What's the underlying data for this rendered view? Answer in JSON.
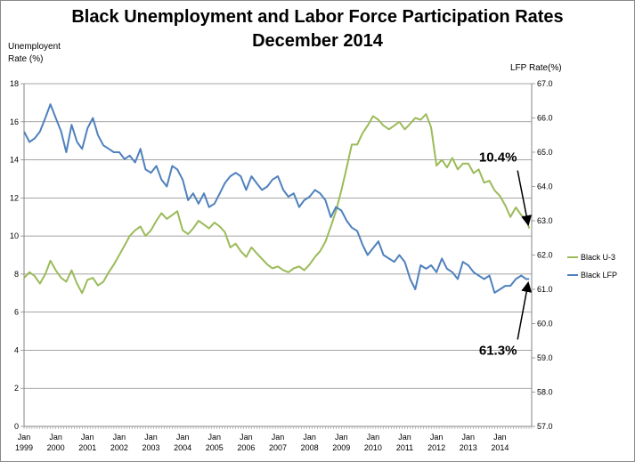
{
  "chart_data": {
    "type": "line",
    "title": "Black Unemployment and Labor Force Participation Rates",
    "subtitle": "December 2014",
    "ylabel_left": "Unemployent Rate (%)",
    "ylabel_right": "LFP Rate(%)",
    "ylim_left": [
      0,
      18
    ],
    "ylim_right": [
      57.0,
      67.0
    ],
    "yticks_left": [
      "0",
      "2",
      "4",
      "6",
      "8",
      "10",
      "12",
      "14",
      "16",
      "18"
    ],
    "yticks_right": [
      "57.0",
      "58.0",
      "59.0",
      "60.0",
      "61.0",
      "62.0",
      "63.0",
      "64.0",
      "65.0",
      "66.0",
      "67.0"
    ],
    "xlim": [
      1999.0,
      2015.0
    ],
    "xticks": [
      {
        "label": "Jan",
        "year": "1999"
      },
      {
        "label": "Jan",
        "year": "2000"
      },
      {
        "label": "Jan",
        "year": "2001"
      },
      {
        "label": "Jan",
        "year": "2002"
      },
      {
        "label": "Jan",
        "year": "2003"
      },
      {
        "label": "Jan",
        "year": "2004"
      },
      {
        "label": "Jan",
        "year": "2005"
      },
      {
        "label": "Jan",
        "year": "2006"
      },
      {
        "label": "Jan",
        "year": "2007"
      },
      {
        "label": "Jan",
        "year": "2008"
      },
      {
        "label": "Jan",
        "year": "2009"
      },
      {
        "label": "Jan",
        "year": "2010"
      },
      {
        "label": "Jan",
        "year": "2011"
      },
      {
        "label": "Jan",
        "year": "2012"
      },
      {
        "label": "Jan",
        "year": "2013"
      },
      {
        "label": "Jan",
        "year": "2014"
      }
    ],
    "grid": "horizontal",
    "legend_position": "right",
    "series": [
      {
        "name": "Black U-3",
        "axis": "left",
        "color": "#9bbb59",
        "points": [
          [
            1999.0,
            7.8
          ],
          [
            1999.17,
            8.1
          ],
          [
            1999.33,
            7.9
          ],
          [
            1999.5,
            7.5
          ],
          [
            1999.67,
            8.0
          ],
          [
            1999.83,
            8.7
          ],
          [
            2000.0,
            8.2
          ],
          [
            2000.17,
            7.8
          ],
          [
            2000.33,
            7.6
          ],
          [
            2000.5,
            8.2
          ],
          [
            2000.67,
            7.5
          ],
          [
            2000.83,
            7.0
          ],
          [
            2001.0,
            7.7
          ],
          [
            2001.17,
            7.8
          ],
          [
            2001.33,
            7.4
          ],
          [
            2001.5,
            7.6
          ],
          [
            2001.67,
            8.1
          ],
          [
            2001.83,
            8.5
          ],
          [
            2002.0,
            9.0
          ],
          [
            2002.17,
            9.5
          ],
          [
            2002.33,
            10.0
          ],
          [
            2002.5,
            10.3
          ],
          [
            2002.67,
            10.5
          ],
          [
            2002.83,
            10.0
          ],
          [
            2003.0,
            10.3
          ],
          [
            2003.17,
            10.8
          ],
          [
            2003.33,
            11.2
          ],
          [
            2003.5,
            10.9
          ],
          [
            2003.67,
            11.1
          ],
          [
            2003.83,
            11.3
          ],
          [
            2004.0,
            10.3
          ],
          [
            2004.17,
            10.1
          ],
          [
            2004.33,
            10.4
          ],
          [
            2004.5,
            10.8
          ],
          [
            2004.67,
            10.6
          ],
          [
            2004.83,
            10.4
          ],
          [
            2005.0,
            10.7
          ],
          [
            2005.17,
            10.5
          ],
          [
            2005.33,
            10.2
          ],
          [
            2005.5,
            9.4
          ],
          [
            2005.67,
            9.6
          ],
          [
            2005.83,
            9.2
          ],
          [
            2006.0,
            8.9
          ],
          [
            2006.17,
            9.4
          ],
          [
            2006.33,
            9.1
          ],
          [
            2006.5,
            8.8
          ],
          [
            2006.67,
            8.5
          ],
          [
            2006.83,
            8.3
          ],
          [
            2007.0,
            8.4
          ],
          [
            2007.17,
            8.2
          ],
          [
            2007.33,
            8.1
          ],
          [
            2007.5,
            8.3
          ],
          [
            2007.67,
            8.4
          ],
          [
            2007.83,
            8.2
          ],
          [
            2008.0,
            8.5
          ],
          [
            2008.17,
            8.9
          ],
          [
            2008.33,
            9.2
          ],
          [
            2008.5,
            9.7
          ],
          [
            2008.67,
            10.5
          ],
          [
            2008.83,
            11.3
          ],
          [
            2009.0,
            12.4
          ],
          [
            2009.17,
            13.6
          ],
          [
            2009.33,
            14.8
          ],
          [
            2009.5,
            14.8
          ],
          [
            2009.67,
            15.4
          ],
          [
            2009.83,
            15.8
          ],
          [
            2010.0,
            16.3
          ],
          [
            2010.17,
            16.1
          ],
          [
            2010.33,
            15.8
          ],
          [
            2010.5,
            15.6
          ],
          [
            2010.67,
            15.8
          ],
          [
            2010.83,
            16.0
          ],
          [
            2011.0,
            15.6
          ],
          [
            2011.17,
            15.9
          ],
          [
            2011.33,
            16.2
          ],
          [
            2011.5,
            16.1
          ],
          [
            2011.67,
            16.4
          ],
          [
            2011.83,
            15.7
          ],
          [
            2012.0,
            13.7
          ],
          [
            2012.17,
            14.0
          ],
          [
            2012.33,
            13.6
          ],
          [
            2012.5,
            14.1
          ],
          [
            2012.67,
            13.5
          ],
          [
            2012.83,
            13.8
          ],
          [
            2013.0,
            13.8
          ],
          [
            2013.17,
            13.3
          ],
          [
            2013.33,
            13.5
          ],
          [
            2013.5,
            12.8
          ],
          [
            2013.67,
            12.9
          ],
          [
            2013.83,
            12.4
          ],
          [
            2014.0,
            12.1
          ],
          [
            2014.17,
            11.6
          ],
          [
            2014.33,
            11.0
          ],
          [
            2014.5,
            11.5
          ],
          [
            2014.67,
            11.1
          ],
          [
            2014.83,
            10.9
          ],
          [
            2014.92,
            10.4
          ]
        ]
      },
      {
        "name": "Black LFP",
        "axis": "right",
        "color": "#4f81bd",
        "points": [
          [
            1999.0,
            65.6
          ],
          [
            1999.17,
            65.3
          ],
          [
            1999.33,
            65.4
          ],
          [
            1999.5,
            65.6
          ],
          [
            1999.67,
            66.0
          ],
          [
            1999.83,
            66.4
          ],
          [
            2000.0,
            66.0
          ],
          [
            2000.17,
            65.6
          ],
          [
            2000.33,
            65.0
          ],
          [
            2000.5,
            65.8
          ],
          [
            2000.67,
            65.3
          ],
          [
            2000.83,
            65.1
          ],
          [
            2001.0,
            65.7
          ],
          [
            2001.17,
            66.0
          ],
          [
            2001.33,
            65.5
          ],
          [
            2001.5,
            65.2
          ],
          [
            2001.67,
            65.1
          ],
          [
            2001.83,
            65.0
          ],
          [
            2002.0,
            65.0
          ],
          [
            2002.17,
            64.8
          ],
          [
            2002.33,
            64.9
          ],
          [
            2002.5,
            64.7
          ],
          [
            2002.67,
            65.1
          ],
          [
            2002.83,
            64.5
          ],
          [
            2003.0,
            64.4
          ],
          [
            2003.17,
            64.6
          ],
          [
            2003.33,
            64.2
          ],
          [
            2003.5,
            64.0
          ],
          [
            2003.67,
            64.6
          ],
          [
            2003.83,
            64.5
          ],
          [
            2004.0,
            64.2
          ],
          [
            2004.17,
            63.6
          ],
          [
            2004.33,
            63.8
          ],
          [
            2004.5,
            63.5
          ],
          [
            2004.67,
            63.8
          ],
          [
            2004.83,
            63.4
          ],
          [
            2005.0,
            63.5
          ],
          [
            2005.17,
            63.8
          ],
          [
            2005.33,
            64.1
          ],
          [
            2005.5,
            64.3
          ],
          [
            2005.67,
            64.4
          ],
          [
            2005.83,
            64.3
          ],
          [
            2006.0,
            63.9
          ],
          [
            2006.17,
            64.3
          ],
          [
            2006.33,
            64.1
          ],
          [
            2006.5,
            63.9
          ],
          [
            2006.67,
            64.0
          ],
          [
            2006.83,
            64.2
          ],
          [
            2007.0,
            64.3
          ],
          [
            2007.17,
            63.9
          ],
          [
            2007.33,
            63.7
          ],
          [
            2007.5,
            63.8
          ],
          [
            2007.67,
            63.4
          ],
          [
            2007.83,
            63.6
          ],
          [
            2008.0,
            63.7
          ],
          [
            2008.17,
            63.9
          ],
          [
            2008.33,
            63.8
          ],
          [
            2008.5,
            63.6
          ],
          [
            2008.67,
            63.1
          ],
          [
            2008.83,
            63.4
          ],
          [
            2009.0,
            63.3
          ],
          [
            2009.17,
            63.0
          ],
          [
            2009.33,
            62.8
          ],
          [
            2009.5,
            62.7
          ],
          [
            2009.67,
            62.3
          ],
          [
            2009.83,
            62.0
          ],
          [
            2010.0,
            62.2
          ],
          [
            2010.17,
            62.4
          ],
          [
            2010.33,
            62.0
          ],
          [
            2010.5,
            61.9
          ],
          [
            2010.67,
            61.8
          ],
          [
            2010.83,
            62.0
          ],
          [
            2011.0,
            61.8
          ],
          [
            2011.17,
            61.3
          ],
          [
            2011.33,
            61.0
          ],
          [
            2011.5,
            61.7
          ],
          [
            2011.67,
            61.6
          ],
          [
            2011.83,
            61.7
          ],
          [
            2012.0,
            61.5
          ],
          [
            2012.17,
            61.9
          ],
          [
            2012.33,
            61.6
          ],
          [
            2012.5,
            61.5
          ],
          [
            2012.67,
            61.3
          ],
          [
            2012.83,
            61.8
          ],
          [
            2013.0,
            61.7
          ],
          [
            2013.17,
            61.5
          ],
          [
            2013.33,
            61.4
          ],
          [
            2013.5,
            61.3
          ],
          [
            2013.67,
            61.4
          ],
          [
            2013.83,
            60.9
          ],
          [
            2014.0,
            61.0
          ],
          [
            2014.17,
            61.1
          ],
          [
            2014.33,
            61.1
          ],
          [
            2014.5,
            61.3
          ],
          [
            2014.67,
            61.4
          ],
          [
            2014.83,
            61.3
          ],
          [
            2014.92,
            61.3
          ]
        ]
      }
    ],
    "annotations": [
      {
        "text": "10.4%",
        "series": "Black U-3",
        "target": [
          2014.92,
          10.4
        ]
      },
      {
        "text": "61.3%",
        "series": "Black LFP",
        "target": [
          2014.92,
          61.3
        ]
      }
    ]
  }
}
